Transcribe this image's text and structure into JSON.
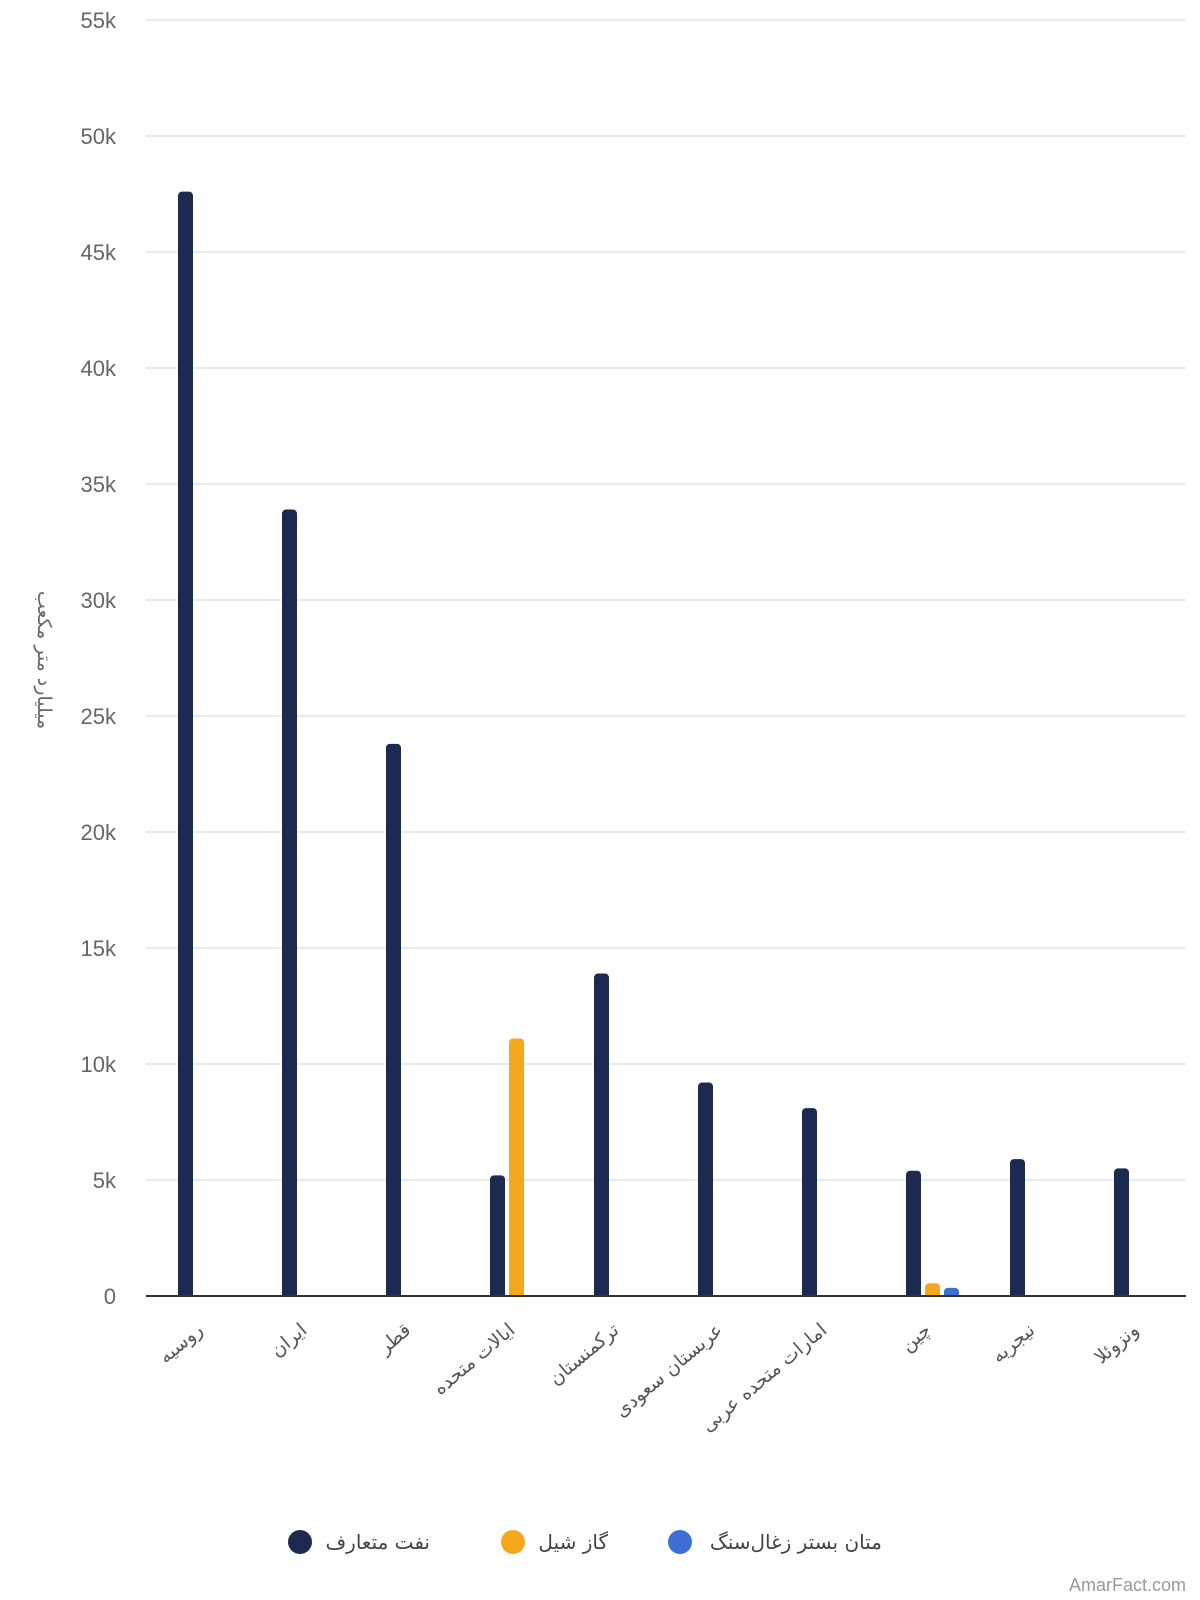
{
  "chart_data": {
    "type": "bar",
    "ylabel": "میلیارد متر مکعب",
    "ylim": [
      0,
      55000
    ],
    "yticks": [
      0,
      5000,
      10000,
      15000,
      20000,
      25000,
      30000,
      35000,
      40000,
      45000,
      50000,
      55000
    ],
    "ytick_labels": [
      "0",
      "5k",
      "10k",
      "15k",
      "20k",
      "25k",
      "30k",
      "35k",
      "40k",
      "45k",
      "50k",
      "55k"
    ],
    "grid": true,
    "legend_position": "bottom",
    "categories": [
      "روسیه",
      "ایران",
      "قطر",
      "ایالات متحده",
      "ترکمنستان",
      "عربستان سعودی",
      "امارات متحده عربی",
      "چین",
      "نیجریه",
      "ونزوئلا"
    ],
    "series": [
      {
        "name": "نفت متعارف",
        "color": "#1b2a4e",
        "values": [
          47600,
          33900,
          23800,
          5200,
          13900,
          9200,
          8100,
          5400,
          5900,
          5500
        ]
      },
      {
        "name": "گاز شیل",
        "color": "#f5a81c",
        "values": [
          null,
          null,
          null,
          11100,
          null,
          null,
          null,
          550,
          null,
          null
        ]
      },
      {
        "name": "متان بستر زغال‌سنگ",
        "color": "#3d6fd6",
        "values": [
          null,
          null,
          null,
          null,
          null,
          null,
          null,
          350,
          null,
          null
        ]
      }
    ]
  },
  "watermark": "AmarFact.com"
}
